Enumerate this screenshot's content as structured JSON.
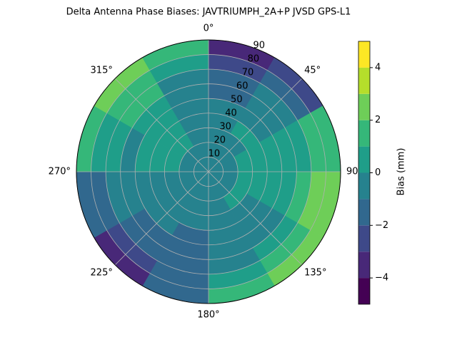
{
  "chart_data": {
    "type": "polar-contour",
    "title": "Delta Antenna Phase Biases: JAVTRIUMPH_2A+P JVSD GPS-L1",
    "colorbar_label": "Bias (mm)",
    "theta": [
      0,
      30,
      60,
      90,
      120,
      150,
      180,
      210,
      240,
      270,
      300,
      330,
      360
    ],
    "r": [
      0,
      10,
      20,
      30,
      40,
      50,
      60,
      70,
      80,
      90
    ],
    "values": [
      [
        -0.5,
        -0.5,
        -0.5,
        -0.5,
        -0.5,
        -0.5,
        -0.5,
        -0.5,
        -0.5,
        -0.5,
        -0.5,
        -0.5
      ],
      [
        -0.5,
        -0.5,
        -0.5,
        -0.5,
        -0.5,
        -0.5,
        -0.5,
        -0.5,
        -0.5,
        -0.5,
        -0.5,
        -0.5
      ],
      [
        -0.5,
        -0.5,
        0.5,
        0.5,
        0.5,
        -0.5,
        -0.5,
        -0.5,
        -0.5,
        0.5,
        0.5,
        -0.5
      ],
      [
        -0.5,
        0.5,
        0.5,
        0.5,
        -0.5,
        -0.5,
        -0.5,
        -0.5,
        -0.5,
        0.5,
        0.5,
        -0.5
      ],
      [
        -0.5,
        -0.5,
        0.5,
        0.5,
        -0.5,
        -0.5,
        -1.5,
        -0.5,
        -0.5,
        0.5,
        0.5,
        -0.5
      ],
      [
        -1.5,
        -0.5,
        0.5,
        0.5,
        -0.5,
        -0.5,
        -1.5,
        -1.5,
        -0.5,
        -0.5,
        0.5,
        -0.5
      ],
      [
        -1.5,
        -0.5,
        0.5,
        1.5,
        0.5,
        -0.5,
        -1.5,
        -1.5,
        -0.5,
        0.5,
        1.5,
        -0.5
      ],
      [
        -2.5,
        -1.5,
        1.5,
        2.5,
        1.5,
        0.5,
        -1.5,
        -2.5,
        -1.5,
        0.5,
        1.5,
        0.5
      ],
      [
        -3.5,
        -2.5,
        1.5,
        2.5,
        2.5,
        1.5,
        -1.5,
        -3.5,
        -1.5,
        1.5,
        2.5,
        1.5
      ]
    ],
    "levels": [
      -5,
      -4,
      -3,
      -2,
      -1,
      0,
      1,
      2,
      3,
      4,
      5
    ],
    "colors": [
      "#440154",
      "#482878",
      "#3e4989",
      "#31688e",
      "#26828e",
      "#1f9e89",
      "#35b779",
      "#6ece58",
      "#b5de2b",
      "#fde725"
    ],
    "rlim": [
      0,
      90
    ],
    "rticks": [
      10,
      20,
      30,
      40,
      50,
      60,
      70,
      80,
      90
    ],
    "thetaticks": [
      {
        "value": 0,
        "label": "0°"
      },
      {
        "value": 45,
        "label": "45°"
      },
      {
        "value": 90,
        "label": "90°"
      },
      {
        "value": 135,
        "label": "135°"
      },
      {
        "value": 180,
        "label": "180°"
      },
      {
        "value": 225,
        "label": "225°"
      },
      {
        "value": 270,
        "label": "270°"
      },
      {
        "value": 315,
        "label": "315°"
      }
    ],
    "clim": [
      -5,
      5
    ],
    "cticks": [
      {
        "value": -4,
        "label": "−4"
      },
      {
        "value": -2,
        "label": "−2"
      },
      0,
      2,
      4
    ],
    "grid": true
  }
}
